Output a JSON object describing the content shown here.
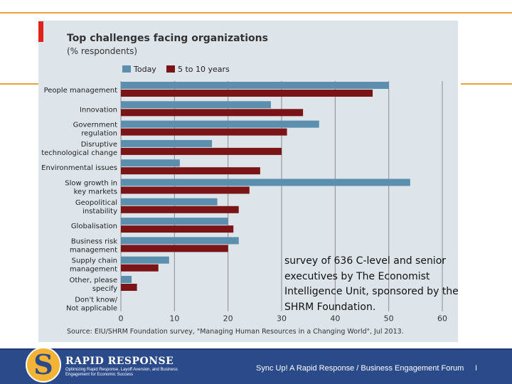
{
  "chart_data": {
    "type": "bar",
    "orientation": "horizontal",
    "title": "Top challenges facing organizations",
    "subtitle": "(% respondents)",
    "categories": [
      "People management",
      "Innovation",
      "Government regulation",
      "Disruptive technological change",
      "Environmental issues",
      "Slow growth in key markets",
      "Geopolitical instability",
      "Globalisation",
      "Business risk management",
      "Supply chain management",
      "Other, please specify",
      "Don't know/ Not applicable"
    ],
    "category_lines": [
      [
        "People management"
      ],
      [
        "Innovation"
      ],
      [
        "Government",
        "regulation"
      ],
      [
        "Disruptive",
        "technological change"
      ],
      [
        "Environmental issues"
      ],
      [
        "Slow growth in",
        "key markets"
      ],
      [
        "Geopolitical",
        "instability"
      ],
      [
        "Globalisation"
      ],
      [
        "Business risk",
        "management"
      ],
      [
        "Supply chain",
        "management"
      ],
      [
        "Other, please",
        "specify"
      ],
      [
        "Don't know/",
        "Not applicable"
      ]
    ],
    "series": [
      {
        "name": "Today",
        "color": "#5b8fad",
        "values": [
          50,
          28,
          37,
          17,
          11,
          54,
          18,
          20,
          22,
          9,
          2,
          0
        ]
      },
      {
        "name": "5 to 10 years",
        "color": "#7b1416",
        "values": [
          47,
          34,
          31,
          30,
          26,
          24,
          22,
          21,
          20,
          7,
          3,
          0
        ]
      }
    ],
    "xlim": [
      0,
      60
    ],
    "xticks": [
      0,
      10,
      20,
      30,
      40,
      50,
      60
    ],
    "grid": true,
    "legend": "top-left",
    "source": "Source: EIU/SHRM Foundation survey, \"Managing Human Resources in a Changing World\", Jul 2013."
  },
  "overlay_text": "survey of 636 C-level and senior executives by The Economist Intelligence Unit, sponsored by the SHRM Foundation.",
  "footer": {
    "logo_text": "RAPID RESPONSE",
    "tagline": "Optimizing Rapid Response, Layoff Aversion, and Business Engagement for Economic Success",
    "forum_title": "Sync Up! A Rapid Response / Business Engagement Forum",
    "separator": "I"
  },
  "colors": {
    "accent_rule": "#e8a23a",
    "footer_bg": "#2b4a8a",
    "chart_bg": "#dde4ea",
    "title_accent": "#e0241b"
  }
}
